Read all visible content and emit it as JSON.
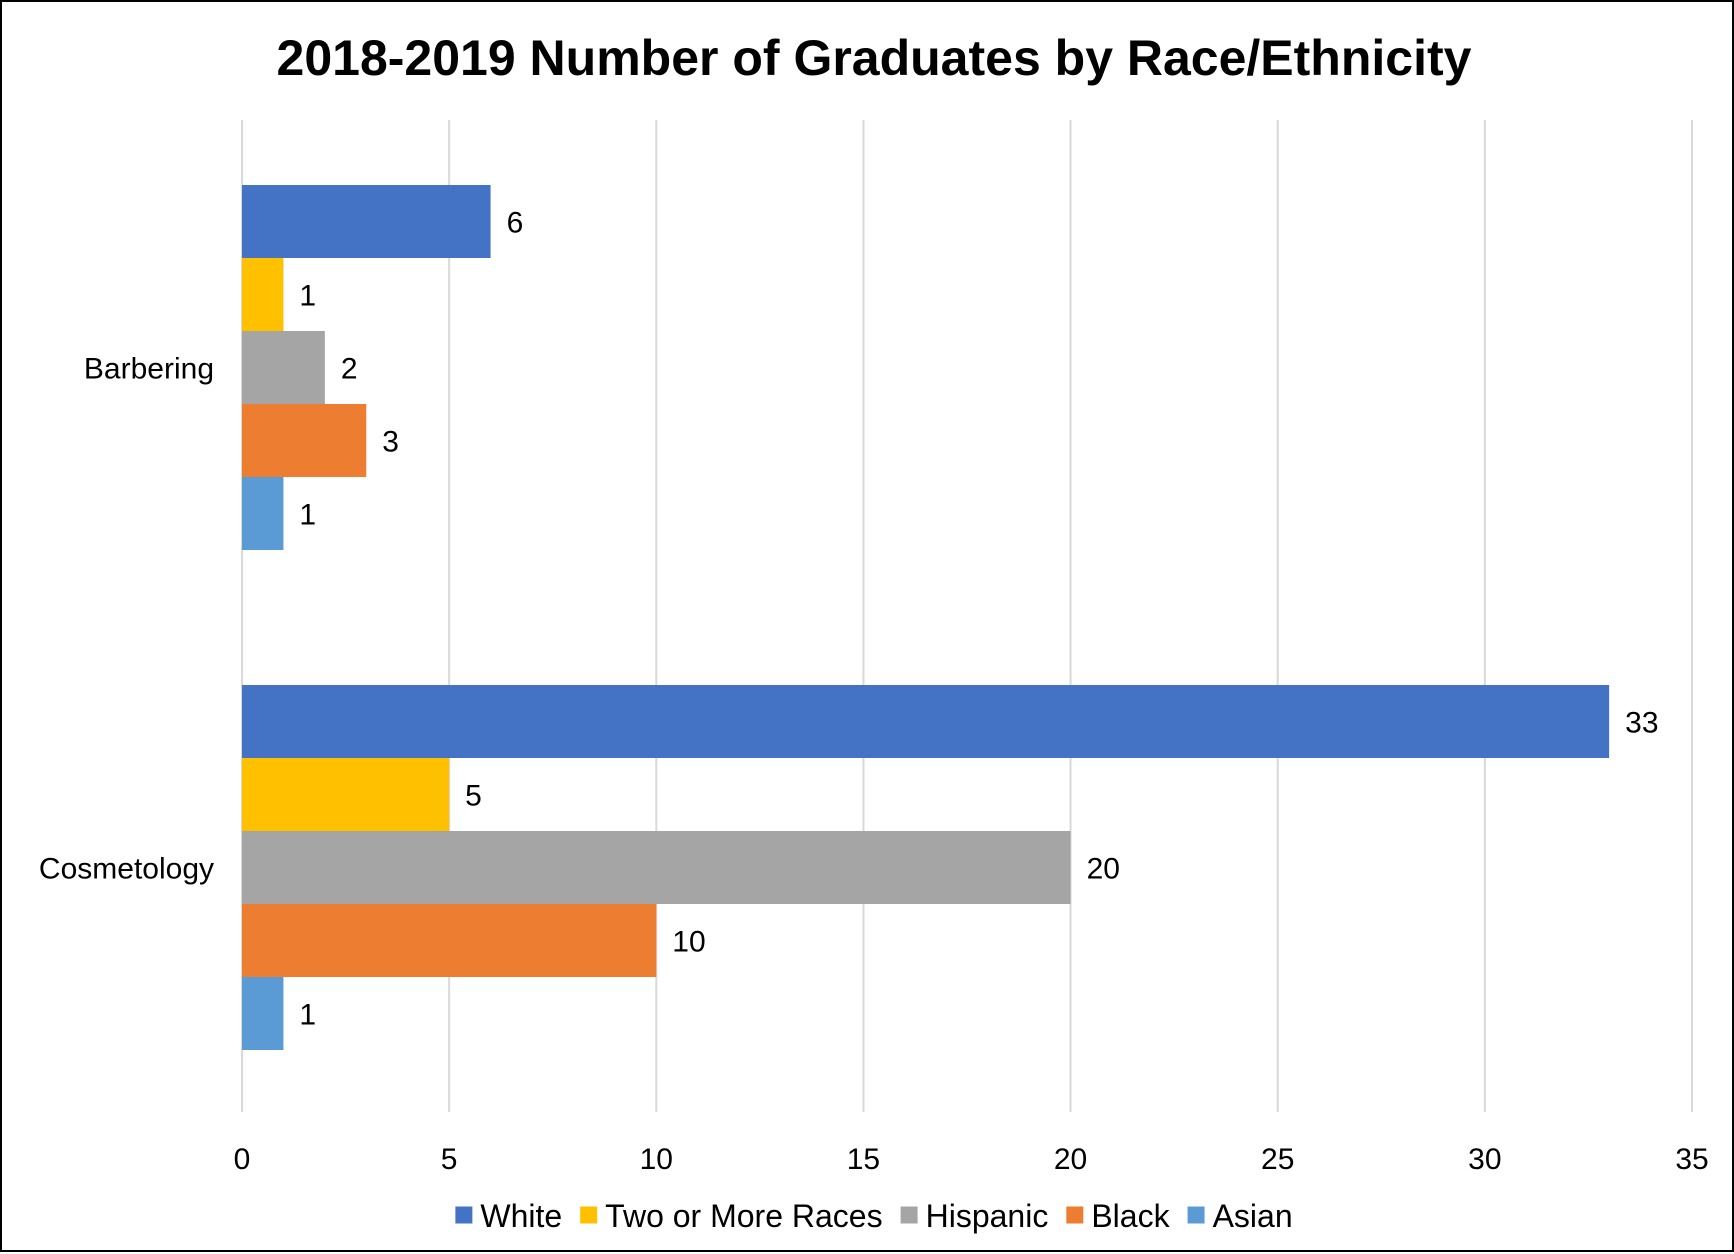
{
  "chart_data": {
    "type": "bar",
    "orientation": "horizontal",
    "title": "2018-2019 Number of Graduates by Race/Ethnicity",
    "xlabel": "",
    "ylabel": "",
    "categories": [
      "Barbering",
      "Cosmetology"
    ],
    "series": [
      {
        "name": "White",
        "color": "#4472C4",
        "values": [
          6,
          33
        ]
      },
      {
        "name": "Two or More Races",
        "color": "#FFC000",
        "values": [
          1,
          5
        ]
      },
      {
        "name": "Hispanic",
        "color": "#A5A5A5",
        "values": [
          2,
          20
        ]
      },
      {
        "name": "Black",
        "color": "#ED7D31",
        "values": [
          3,
          10
        ]
      },
      {
        "name": "Asian",
        "color": "#5B9BD5",
        "values": [
          1,
          1
        ]
      }
    ],
    "xlim": [
      0,
      35
    ],
    "x_ticks": [
      0,
      5,
      10,
      15,
      20,
      25,
      30,
      35
    ],
    "grid": "vertical",
    "legend_position": "bottom",
    "data_labels": true
  }
}
